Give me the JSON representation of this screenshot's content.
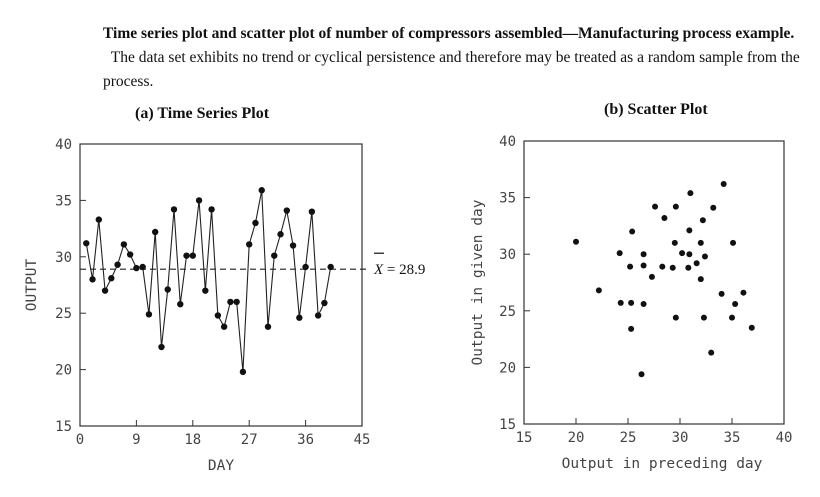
{
  "caption": {
    "bold_part": "Time series plot and scatter plot of number of compressors assembled—Manufacturing process example.",
    "body_part": "The data set exhibits no trend or cyclical persistence and therefore may be treated as a random sample from the process."
  },
  "chart_data": [
    {
      "type": "line",
      "panel_title": "(a)  Time Series Plot",
      "xlabel": "DAY",
      "ylabel": "OUTPUT",
      "xlim": [
        0,
        45
      ],
      "ylim": [
        15,
        40
      ],
      "xticks": [
        0,
        9,
        18,
        27,
        36,
        45
      ],
      "yticks": [
        15,
        20,
        25,
        30,
        35,
        40
      ],
      "mean_line": {
        "value": 28.9,
        "label_var": "X",
        "label_rest": " = 28.9"
      },
      "x": [
        1,
        2,
        3,
        4,
        5,
        6,
        7,
        8,
        9,
        10,
        11,
        12,
        13,
        14,
        15,
        16,
        17,
        18,
        19,
        20,
        21,
        22,
        23,
        24,
        25,
        26,
        27,
        28,
        29,
        30,
        31,
        32,
        33,
        34,
        35,
        36,
        37,
        38,
        39,
        40
      ],
      "values": [
        31.2,
        28.0,
        33.3,
        27.0,
        28.1,
        29.3,
        31.1,
        30.2,
        29.0,
        29.1,
        24.9,
        32.2,
        22.0,
        27.1,
        34.2,
        25.8,
        30.1,
        30.1,
        35.0,
        27.0,
        34.2,
        24.8,
        23.8,
        26.0,
        26.0,
        19.8,
        31.1,
        33.0,
        35.9,
        23.8,
        30.1,
        32.0,
        34.1,
        31.0,
        24.6,
        29.1,
        34.0,
        24.8,
        25.9,
        29.1
      ]
    },
    {
      "type": "scatter",
      "panel_title": "(b)  Scatter Plot",
      "xlabel": "Output in preceding day",
      "ylabel": "Output in given day",
      "xlim": [
        15,
        40
      ],
      "ylim": [
        15,
        40
      ],
      "xticks": [
        15,
        20,
        25,
        30,
        35,
        40
      ],
      "yticks": [
        15,
        20,
        25,
        30,
        35,
        40
      ],
      "points": [
        [
          20.0,
          31.1
        ],
        [
          22.2,
          26.8
        ],
        [
          24.2,
          30.1
        ],
        [
          24.3,
          25.7
        ],
        [
          25.2,
          28.9
        ],
        [
          25.3,
          25.7
        ],
        [
          25.4,
          32.0
        ],
        [
          25.3,
          23.4
        ],
        [
          26.3,
          19.4
        ],
        [
          26.5,
          29.0
        ],
        [
          26.5,
          30.0
        ],
        [
          26.5,
          25.6
        ],
        [
          27.3,
          28.0
        ],
        [
          27.6,
          34.2
        ],
        [
          28.3,
          28.9
        ],
        [
          28.5,
          33.2
        ],
        [
          29.3,
          28.8
        ],
        [
          29.5,
          31.0
        ],
        [
          29.6,
          34.2
        ],
        [
          29.6,
          24.4
        ],
        [
          30.2,
          30.1
        ],
        [
          30.8,
          28.8
        ],
        [
          30.9,
          30.0
        ],
        [
          30.9,
          32.1
        ],
        [
          31.0,
          35.4
        ],
        [
          31.6,
          29.2
        ],
        [
          32.0,
          31.0
        ],
        [
          32.0,
          27.8
        ],
        [
          32.2,
          33.0
        ],
        [
          32.3,
          24.4
        ],
        [
          32.4,
          29.8
        ],
        [
          33.0,
          21.3
        ],
        [
          33.2,
          34.1
        ],
        [
          34.0,
          26.5
        ],
        [
          34.2,
          36.2
        ],
        [
          35.0,
          24.4
        ],
        [
          35.1,
          31.0
        ],
        [
          35.3,
          25.6
        ],
        [
          36.1,
          26.6
        ],
        [
          36.9,
          23.5
        ]
      ]
    }
  ]
}
